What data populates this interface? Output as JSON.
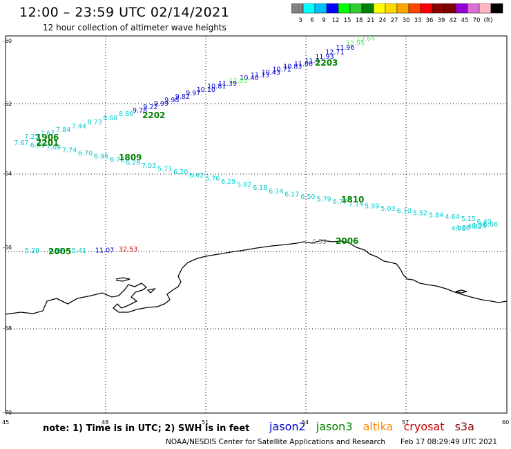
{
  "title": "12:00 – 23:59 UTC 02/14/2021",
  "subtitle": "12 hour collection of altimeter wave heights",
  "legend": {
    "colors": [
      "#808080",
      "#00ffff",
      "#00bfff",
      "#0000ff",
      "#00ff00",
      "#32cd32",
      "#008000",
      "#ffff00",
      "#ffd700",
      "#ffa500",
      "#ff4500",
      "#ff0000",
      "#8b0000",
      "#800000",
      "#9400d3",
      "#da70d6",
      "#ffb6c1",
      "#000000"
    ],
    "labels": [
      "3",
      "6",
      "9",
      "12",
      "15",
      "18",
      "21",
      "24",
      "27",
      "30",
      "33",
      "36",
      "39",
      "42",
      "45",
      "70",
      "(ft)"
    ]
  },
  "axes": {
    "lon_ticks": [
      "45",
      "48",
      "51",
      "54",
      "57",
      "60"
    ],
    "lat_ticks": [
      "-60",
      "-62",
      "-64",
      "-66",
      "-68",
      "-70"
    ]
  },
  "tracks": {
    "t2203": {
      "values": [
        "13.64",
        "12.95",
        "11.96",
        "12.71",
        "11.93",
        "11.4",
        "11.08",
        "10.83",
        "10.71",
        "10.43",
        "11.13",
        "10.40",
        "12.05",
        "11.39",
        "10.81",
        "10.10",
        "9.97",
        "9.82",
        "9.98",
        "9.99",
        "9.22",
        "9.78"
      ],
      "colors": [
        "#66ee66",
        "#66ee66",
        "#0000cc",
        "#0000cc",
        "#0000cc",
        "#0000cc",
        "#0000cc",
        "#0000cc",
        "#0000cc",
        "#0000cc",
        "#0000cc",
        "#0000cc",
        "#66ee66",
        "#0000cc",
        "#0000cc",
        "#0000cc",
        "#0000cc",
        "#0000cc",
        "#0000cc",
        "#0000cc",
        "#0000cc",
        "#0000cc"
      ]
    },
    "t2202": {
      "values": [
        "8.86",
        "8.68",
        "8.73",
        "7.44",
        "7.84",
        "7.67",
        "7.25",
        "7.67",
        "6.98",
        "7.09",
        "7.74",
        "6.70",
        "6.96",
        "6.72",
        "6.29",
        "7.03",
        "5.71",
        "6.20",
        "6.42",
        "5.76",
        "6.29",
        "5.82",
        "6.18",
        "6.14",
        "6.17",
        "6.50",
        "5.79",
        "6.77",
        "7.14",
        "5.99",
        "5.03",
        "6.10",
        "5.52",
        "5.84",
        "4.64",
        "5.15",
        "6.40",
        "6.06",
        "4.00",
        "4.76",
        "4.82",
        "6.06"
      ]
    },
    "t2005": {
      "values": [
        "5.29",
        "4.39",
        "5.41",
        "11.07",
        "32.53"
      ],
      "colors": [
        "#00cccc",
        "#00cccc",
        "#00cccc",
        "#0000cc",
        "#cc0000"
      ]
    },
    "t2006": {
      "value": "0.59"
    }
  },
  "track_labels": [
    "2203",
    "2202",
    "1809",
    "1810",
    "2006",
    "2005",
    "1906",
    "2201"
  ],
  "note": "note:  1) Time is in UTC;  2) SWH is in feet",
  "satellites": [
    {
      "name": "jason2",
      "color": "#0000cc"
    },
    {
      "name": "jason3",
      "color": "#008000"
    },
    {
      "name": "altika",
      "color": "#ff8c00"
    },
    {
      "name": "cryosat",
      "color": "#cc0000"
    },
    {
      "name": "s3a",
      "color": "#8b0000"
    }
  ],
  "footer": "NOAA/NESDIS Center for Satellite Applications and Research",
  "timestamp": "Feb 17 08:29:49 UTC 2021"
}
